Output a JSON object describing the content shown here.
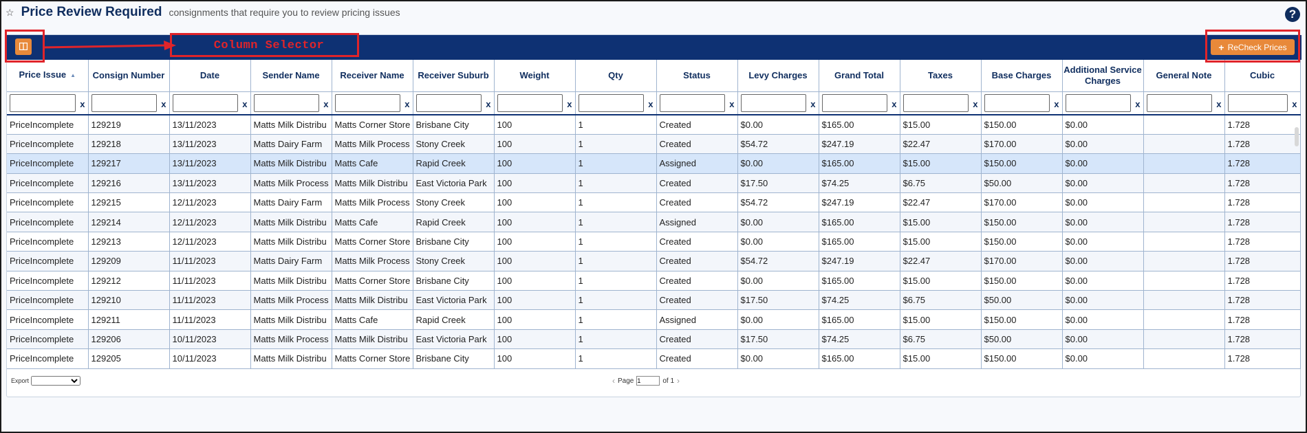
{
  "header": {
    "title": "Price Review Required",
    "subtitle": "consignments that require you to review pricing issues",
    "help": "?"
  },
  "toolbar": {
    "column_selector_label": "Column Selector",
    "recheck_label": "ReCheck Prices"
  },
  "columns": [
    "Price Issue",
    "Consign Number",
    "Date",
    "Sender Name",
    "Receiver Name",
    "Receiver Suburb",
    "Weight",
    "Qty",
    "Status",
    "Levy Charges",
    "Grand Total",
    "Taxes",
    "Base Charges",
    "Additional Service Charges",
    "General Note",
    "Cubic"
  ],
  "filter_clear": "x",
  "rows": [
    [
      "PriceIncomplete",
      "129219",
      "13/11/2023",
      "Matts Milk Distribu",
      "Matts Corner Store",
      "Brisbane City",
      "100",
      "1",
      "Created",
      "$0.00",
      "$165.00",
      "$15.00",
      "$150.00",
      "$0.00",
      "",
      "1.728"
    ],
    [
      "PriceIncomplete",
      "129218",
      "13/11/2023",
      "Matts Dairy Farm",
      "Matts Milk Process",
      "Stony Creek",
      "100",
      "1",
      "Created",
      "$54.72",
      "$247.19",
      "$22.47",
      "$170.00",
      "$0.00",
      "",
      "1.728"
    ],
    [
      "PriceIncomplete",
      "129217",
      "13/11/2023",
      "Matts Milk Distribu",
      "Matts Cafe",
      "Rapid Creek",
      "100",
      "1",
      "Assigned",
      "$0.00",
      "$165.00",
      "$15.00",
      "$150.00",
      "$0.00",
      "",
      "1.728"
    ],
    [
      "PriceIncomplete",
      "129216",
      "13/11/2023",
      "Matts Milk Process",
      "Matts Milk Distribu",
      "East Victoria Park",
      "100",
      "1",
      "Created",
      "$17.50",
      "$74.25",
      "$6.75",
      "$50.00",
      "$0.00",
      "",
      "1.728"
    ],
    [
      "PriceIncomplete",
      "129215",
      "12/11/2023",
      "Matts Dairy Farm",
      "Matts Milk Process",
      "Stony Creek",
      "100",
      "1",
      "Created",
      "$54.72",
      "$247.19",
      "$22.47",
      "$170.00",
      "$0.00",
      "",
      "1.728"
    ],
    [
      "PriceIncomplete",
      "129214",
      "12/11/2023",
      "Matts Milk Distribu",
      "Matts Cafe",
      "Rapid Creek",
      "100",
      "1",
      "Assigned",
      "$0.00",
      "$165.00",
      "$15.00",
      "$150.00",
      "$0.00",
      "",
      "1.728"
    ],
    [
      "PriceIncomplete",
      "129213",
      "12/11/2023",
      "Matts Milk Distribu",
      "Matts Corner Store",
      "Brisbane City",
      "100",
      "1",
      "Created",
      "$0.00",
      "$165.00",
      "$15.00",
      "$150.00",
      "$0.00",
      "",
      "1.728"
    ],
    [
      "PriceIncomplete",
      "129209",
      "11/11/2023",
      "Matts Dairy Farm",
      "Matts Milk Process",
      "Stony Creek",
      "100",
      "1",
      "Created",
      "$54.72",
      "$247.19",
      "$22.47",
      "$170.00",
      "$0.00",
      "",
      "1.728"
    ],
    [
      "PriceIncomplete",
      "129212",
      "11/11/2023",
      "Matts Milk Distribu",
      "Matts Corner Store",
      "Brisbane City",
      "100",
      "1",
      "Created",
      "$0.00",
      "$165.00",
      "$15.00",
      "$150.00",
      "$0.00",
      "",
      "1.728"
    ],
    [
      "PriceIncomplete",
      "129210",
      "11/11/2023",
      "Matts Milk Process",
      "Matts Milk Distribu",
      "East Victoria Park",
      "100",
      "1",
      "Created",
      "$17.50",
      "$74.25",
      "$6.75",
      "$50.00",
      "$0.00",
      "",
      "1.728"
    ],
    [
      "PriceIncomplete",
      "129211",
      "11/11/2023",
      "Matts Milk Distribu",
      "Matts Cafe",
      "Rapid Creek",
      "100",
      "1",
      "Assigned",
      "$0.00",
      "$165.00",
      "$15.00",
      "$150.00",
      "$0.00",
      "",
      "1.728"
    ],
    [
      "PriceIncomplete",
      "129206",
      "10/11/2023",
      "Matts Milk Process",
      "Matts Milk Distribu",
      "East Victoria Park",
      "100",
      "1",
      "Created",
      "$17.50",
      "$74.25",
      "$6.75",
      "$50.00",
      "$0.00",
      "",
      "1.728"
    ],
    [
      "PriceIncomplete",
      "129205",
      "10/11/2023",
      "Matts Milk Distribu",
      "Matts Corner Store",
      "Brisbane City",
      "100",
      "1",
      "Created",
      "$0.00",
      "$165.00",
      "$15.00",
      "$150.00",
      "$0.00",
      "",
      "1.728"
    ]
  ],
  "selected_row": 2,
  "footer": {
    "export_label": "Export",
    "page_label": "Page",
    "page_value": "1",
    "of_label": "of 1"
  },
  "colors": {
    "accent": "#e8893a",
    "toolbar": "#0e3173",
    "annotation": "#e0242a"
  }
}
